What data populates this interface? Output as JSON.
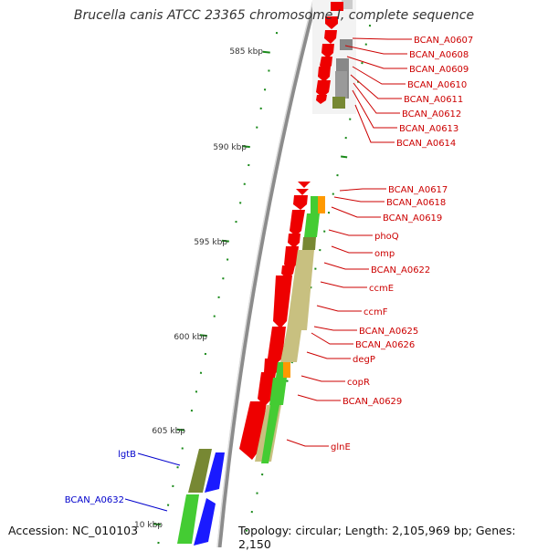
{
  "title": "Brucella canis ATCC 23365 chromosome I, complete sequence",
  "footer": {
    "accession": "Accession: NC_010103",
    "topology": "Topology: circular; Length: 2,105,969 bp; Genes: 2,150"
  },
  "colors": {
    "cds_forward": "#ee0000",
    "cds_reverse": "#1a1aff",
    "red_label": "#cc0000",
    "blue_label": "#0000cc",
    "tick": "#1a8a1a",
    "backbone": "#999999",
    "cog_green": "#44cc33",
    "cog_olive": "#778833",
    "cog_khaki": "#c8c080",
    "cog_orange": "#ff9900",
    "cog_gray": "#888888"
  },
  "scale_labels": [
    "585 kbp",
    "590 kbp",
    "595 kbp",
    "600 kbp",
    "605 kbp",
    "10 kbp"
  ],
  "gene_labels_right": [
    "BCAN_A0607",
    "BCAN_A0608",
    "BCAN_A0609",
    "BCAN_A0610",
    "BCAN_A0611",
    "BCAN_A0612",
    "BCAN_A0613",
    "BCAN_A0614",
    "BCAN_A0617",
    "BCAN_A0618",
    "BCAN_A0619",
    "phoQ",
    "omp",
    "BCAN_A0622",
    "ccmE",
    "ccmF",
    "BCAN_A0625",
    "BCAN_A0626",
    "degP",
    "copR",
    "BCAN_A0629",
    "glnE"
  ],
  "gene_labels_left": [
    "lgtB",
    "BCAN_A0632"
  ]
}
